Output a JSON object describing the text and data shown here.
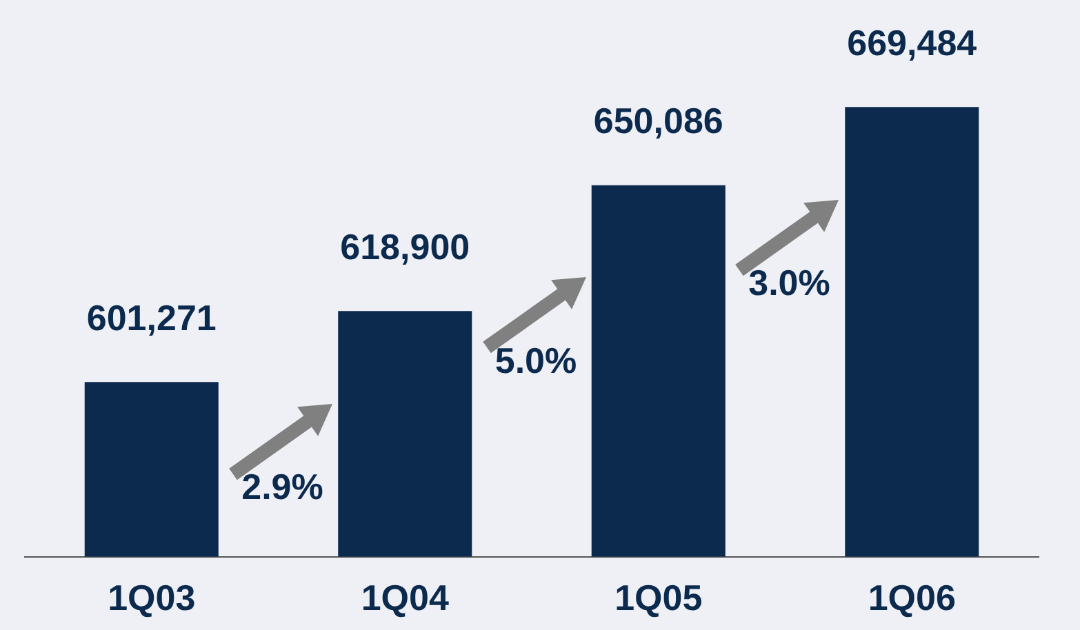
{
  "chart_data": {
    "type": "bar",
    "categories": [
      "1Q03",
      "1Q04",
      "1Q05",
      "1Q06"
    ],
    "values": [
      601271,
      618900,
      650086,
      669484
    ],
    "color": "#0c2a4e",
    "value_labels": [
      "601,271",
      "618,900",
      "650,086",
      "669,484"
    ],
    "annotations": [
      "2.9%",
      "5.0%",
      "3.0%"
    ],
    "ylim": [
      558000,
      696000
    ],
    "tick_labels": "x",
    "grid": false,
    "legend": false
  }
}
